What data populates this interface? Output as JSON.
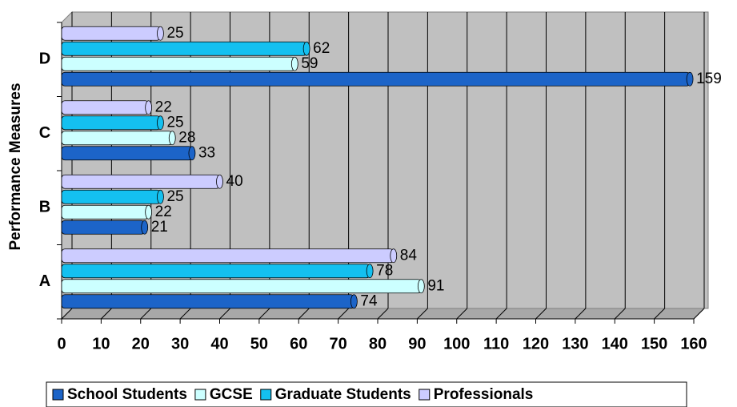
{
  "chart_data": {
    "type": "bar",
    "orientation": "horizontal",
    "y_label": "Performance Measures",
    "categories": [
      "A",
      "B",
      "C",
      "D"
    ],
    "series": [
      {
        "name": "School Students",
        "color": "#1c64c8",
        "values": [
          74,
          21,
          33,
          159
        ]
      },
      {
        "name": "GCSE",
        "color": "#ccffff",
        "values": [
          91,
          22,
          28,
          59
        ]
      },
      {
        "name": "Graduate Students",
        "color": "#14c0f0",
        "values": [
          78,
          25,
          25,
          62
        ]
      },
      {
        "name": "Professionals",
        "color": "#ccccff",
        "values": [
          84,
          40,
          22,
          25
        ]
      }
    ],
    "xlim": [
      0,
      160
    ],
    "xticks": [
      0,
      10,
      20,
      30,
      40,
      50,
      60,
      70,
      80,
      90,
      100,
      110,
      120,
      130,
      140,
      150,
      160
    ],
    "grid": true,
    "legend": "bottom"
  }
}
